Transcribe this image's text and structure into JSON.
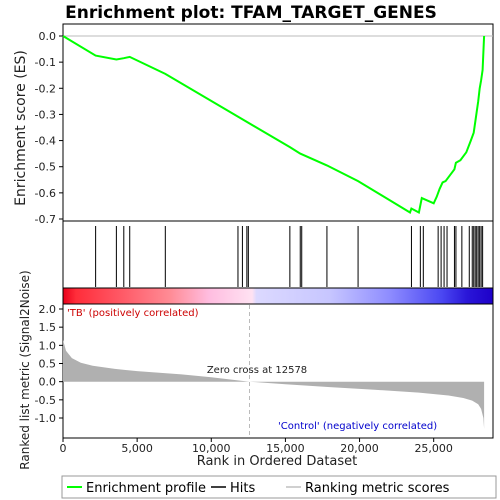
{
  "chart_data": {
    "type": "line",
    "title": "Enrichment plot: TFAM_TARGET_GENES",
    "es_panel": {
      "ylabel": "Enrichment score (ES)",
      "ylim": [
        -0.7,
        0.0
      ],
      "yticks": [
        "0.0",
        "-0.1",
        "-0.2",
        "-0.3",
        "-0.4",
        "-0.5",
        "-0.6",
        "-0.7"
      ],
      "ytick_values": [
        0.0,
        -0.1,
        -0.2,
        -0.3,
        -0.4,
        -0.5,
        -0.6,
        -0.7
      ],
      "curve_x": [
        0,
        2200,
        3600,
        4100,
        4500,
        6900,
        12000,
        15300,
        16000,
        17800,
        19900,
        23400,
        23500,
        24000,
        24200,
        25000,
        25200,
        25400,
        25600,
        25800,
        26000,
        26400,
        26500,
        26800,
        27000,
        27200,
        27500,
        27700,
        27800,
        27900,
        28000,
        28100,
        28200,
        28300,
        28400
      ],
      "curve_y": [
        0.0,
        -0.075,
        -0.09,
        -0.085,
        -0.08,
        -0.145,
        -0.315,
        -0.425,
        -0.45,
        -0.495,
        -0.555,
        -0.675,
        -0.66,
        -0.675,
        -0.62,
        -0.64,
        -0.615,
        -0.585,
        -0.56,
        -0.555,
        -0.54,
        -0.51,
        -0.485,
        -0.475,
        -0.46,
        -0.445,
        -0.4,
        -0.37,
        -0.33,
        -0.29,
        -0.25,
        -0.2,
        -0.17,
        -0.13,
        0.0
      ]
    },
    "hits_x": [
      2200,
      3600,
      4100,
      4500,
      6900,
      11800,
      12100,
      12400,
      12500,
      15300,
      16000,
      16100,
      17800,
      19900,
      23500,
      24100,
      24300,
      25300,
      25500,
      25700,
      25900,
      26400,
      26500,
      26900,
      27400,
      27600,
      27700,
      27800,
      27900,
      28000,
      28100,
      28200,
      28300
    ],
    "metric_panel": {
      "ylabel": "Ranked list metric (Signal2Noise)",
      "ylim": [
        -1.3,
        2.0
      ],
      "yticks": [
        "2.0",
        "1.5",
        "1.0",
        "0.5",
        "0.0",
        "-0.5",
        "-1.0"
      ],
      "ytick_values": [
        2.0,
        1.5,
        1.0,
        0.5,
        0.0,
        -0.5,
        -1.0
      ],
      "curve_x": [
        0,
        200,
        600,
        1200,
        2000,
        3500,
        5000,
        8000,
        10000,
        12578,
        15000,
        18000,
        21000,
        24000,
        26000,
        27000,
        27600,
        28000,
        28200,
        28350,
        28400
      ],
      "curve_y": [
        1.15,
        0.85,
        0.65,
        0.52,
        0.44,
        0.35,
        0.29,
        0.2,
        0.12,
        0.0,
        -0.07,
        -0.15,
        -0.22,
        -0.3,
        -0.38,
        -0.45,
        -0.52,
        -0.62,
        -0.75,
        -1.0,
        -1.3
      ],
      "zero_cross_label": "Zero cross at 12578",
      "zero_cross_x": 12578,
      "pos_label": "'TB' (positively correlated)",
      "neg_label": "'Control' (negatively correlated)"
    },
    "xlabel": "Rank in Ordered Dataset",
    "xlim": [
      0,
      29000
    ],
    "xticks": [
      "0",
      "5,000",
      "10,000",
      "15,000",
      "20,000",
      "25,000"
    ],
    "xtick_values": [
      0,
      5000,
      10000,
      15000,
      20000,
      25000
    ],
    "n_genes": 28400,
    "legend": {
      "position": "bottom",
      "items": [
        {
          "label": "Enrichment profile",
          "color": "#00ff00"
        },
        {
          "label": "Hits",
          "color": "#000000"
        },
        {
          "label": "Ranking metric scores",
          "color": "#c0c0c0"
        }
      ]
    },
    "colors": {
      "es_line": "#00ff00",
      "hit": "#000000",
      "metric_fill": "#b0b0b0",
      "pos_text": "#cc0000",
      "neg_text": "#0000cc",
      "zero_line": "#bbbbbb"
    }
  }
}
